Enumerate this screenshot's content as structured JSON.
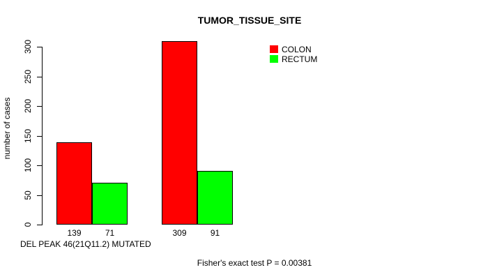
{
  "figure": {
    "title": "TUMOR_TISSUE_SITE",
    "footnote": "Fisher's exact test P = 0.00381"
  },
  "chart_data": {
    "type": "bar",
    "title": "TUMOR_TISSUE_SITE",
    "ylabel": "number of cases",
    "xlabel": "DEL PEAK 46(21Q11.2) MUTATED",
    "series": [
      {
        "name": "COLON",
        "color": "#ff0000",
        "values": [
          139,
          309
        ]
      },
      {
        "name": "RECTUM",
        "color": "#00ff00",
        "values": [
          71,
          91
        ]
      }
    ],
    "bar_value_labels": [
      "139",
      "71",
      "309",
      "91"
    ],
    "y_ticks": [
      0,
      50,
      100,
      150,
      200,
      250,
      300
    ],
    "ylim": [
      0,
      310
    ],
    "grid": false,
    "bar_border_color": "#000000",
    "legend_position": "upper-right-inside",
    "footnote": "Fisher's exact test P = 0.00381"
  },
  "legend": {
    "items": [
      {
        "label": "COLON",
        "color": "#ff0000"
      },
      {
        "label": "RECTUM",
        "color": "#00ff00"
      }
    ]
  }
}
